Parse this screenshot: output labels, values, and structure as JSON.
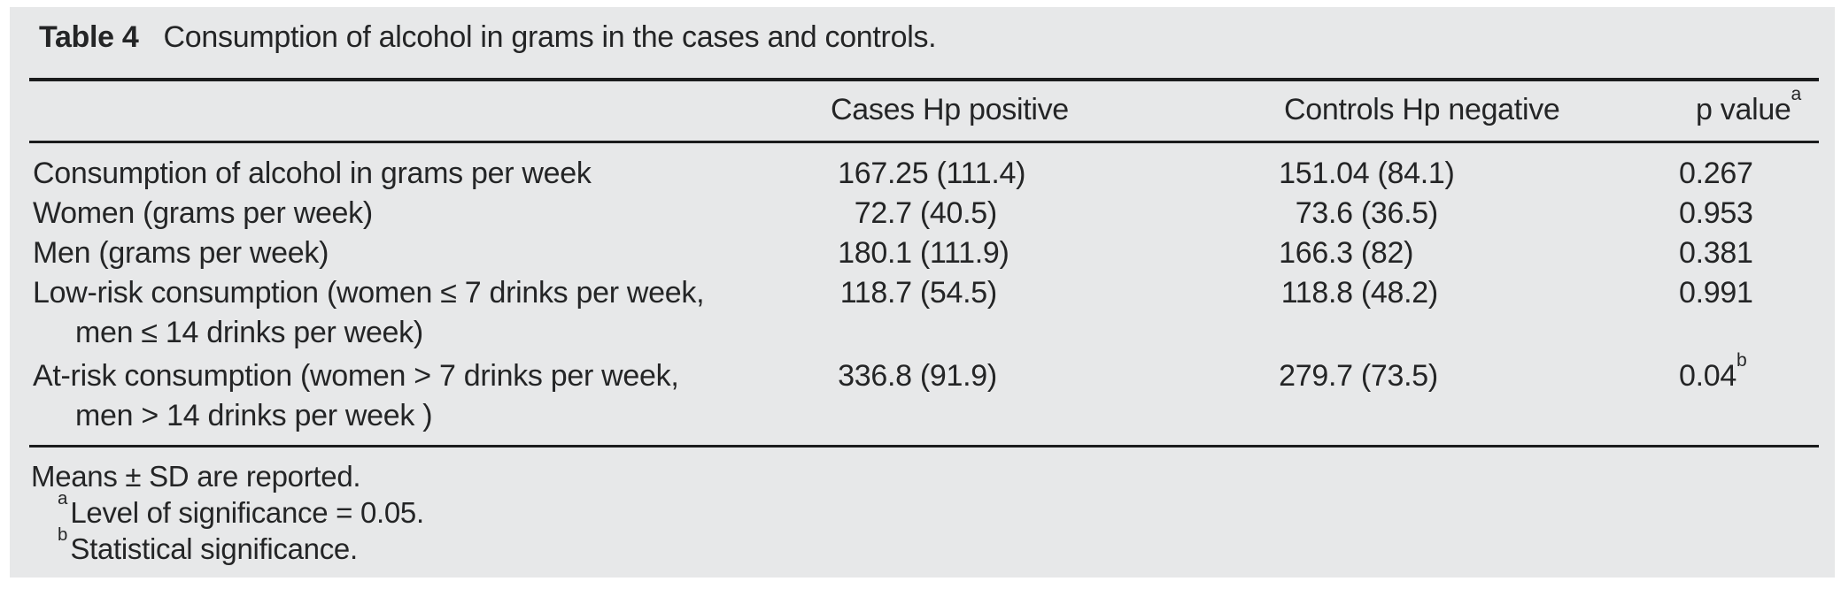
{
  "caption": {
    "label": "Table 4",
    "text": "Consumption of alcohol in grams in the cases and controls."
  },
  "table": {
    "columns": {
      "cases": "Cases Hp positive",
      "controls": "Controls Hp negative",
      "p_value": "p value",
      "p_value_sup": "a"
    },
    "rows": [
      {
        "label": "Consumption of alcohol in grams per week",
        "cases": "167.25 (111.4)",
        "controls": "151.04 (84.1)",
        "p": "0.267",
        "p_sup": ""
      },
      {
        "label": "Women (grams per week)",
        "cases": "72.7 (40.5)",
        "controls": "73.6 (36.5)",
        "p": "0.953",
        "p_sup": ""
      },
      {
        "label": "Men (grams per week)",
        "cases": "180.1 (111.9)",
        "controls": "166.3 (82)",
        "p": "0.381",
        "p_sup": ""
      },
      {
        "label": "Low-risk consumption (women ≤ 7 drinks per week,",
        "label_line2": "men ≤ 14 drinks per week)",
        "cases": "118.7 (54.5)",
        "controls": "118.8 (48.2)",
        "p": "0.991",
        "p_sup": ""
      },
      {
        "label": "At-risk consumption (women > 7 drinks per week,",
        "label_line2": "men > 14 drinks per week )",
        "cases": "336.8 (91.9)",
        "controls": "279.7 (73.5)",
        "p": "0.04",
        "p_sup": "b"
      }
    ]
  },
  "footnotes": {
    "means": "Means ± SD are reported.",
    "a_sup": "a",
    "a_text": "Level of significance = 0.05.",
    "b_sup": "b",
    "b_text": "Statistical significance."
  },
  "colors": {
    "panel_bg": "#e7e8e9",
    "text": "#242526",
    "rule": "#1b1c1d"
  }
}
